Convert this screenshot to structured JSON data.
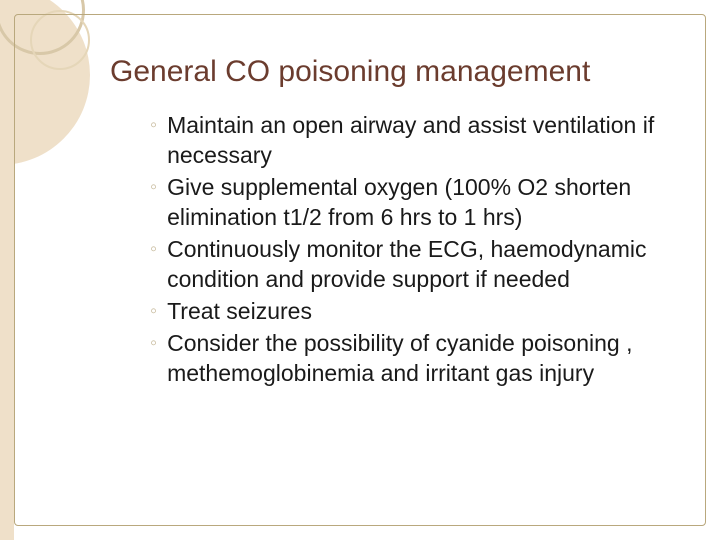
{
  "slide": {
    "title": "General CO poisoning management",
    "bullets": [
      "Maintain an open airway and assist ventilation if necessary",
      "Give supplemental oxygen (100% O2 shorten elimination t1/2 from 6 hrs to 1 hrs)",
      "Continuously monitor the ECG, haemodynamic condition and provide support if needed",
      "Treat seizures",
      "Consider the possibility of cyanide poisoning , methemoglobinemia and irritant gas injury"
    ],
    "bullet_marker": "◦"
  },
  "style": {
    "background_color": "#ffffff",
    "accent_fill": "#efe0c9",
    "ring_color": "#d8c8a8",
    "frame_border_color": "#b9a87d",
    "title_color": "#6b3c2e",
    "body_text_color": "#1a1a1a",
    "bullet_marker_color": "#c9bda0",
    "title_fontsize": 30,
    "body_fontsize": 23,
    "body_lineheight": 30,
    "slide_width": 720,
    "slide_height": 540
  }
}
